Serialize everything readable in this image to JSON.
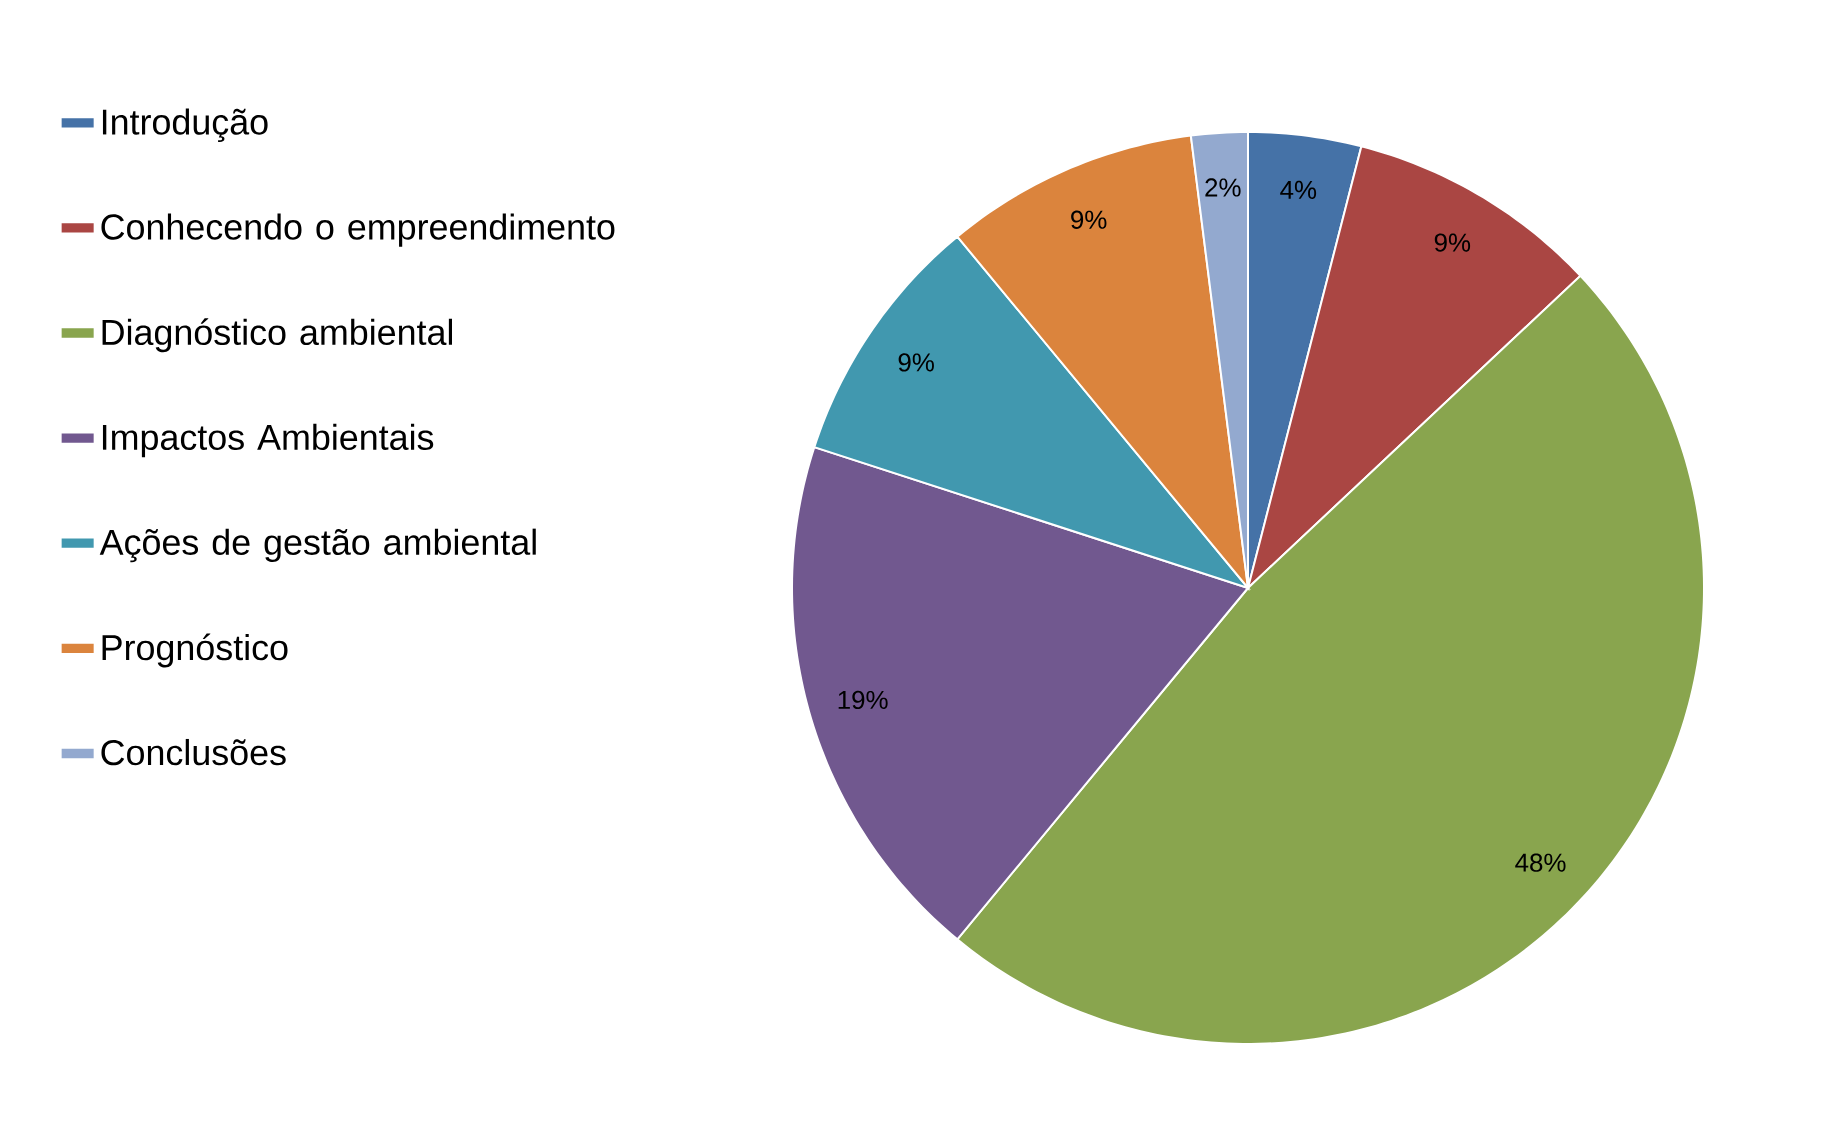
{
  "chart_data": {
    "type": "pie",
    "categories": [
      "Introdução",
      "Conhecendo o empreendimento",
      "Diagnóstico ambiental",
      "Impactos Ambientais",
      "Ações de gestão ambiental",
      "Prognóstico",
      "Conclusões"
    ],
    "values": [
      4,
      9,
      48,
      19,
      9,
      9,
      2
    ],
    "value_labels": [
      "4%",
      "9%",
      "48%",
      "19%",
      "9%",
      "9%",
      "2%"
    ],
    "colors": [
      "#4572a7",
      "#aa4643",
      "#89a54e",
      "#71588f",
      "#4198af",
      "#db843d",
      "#93a9cf"
    ],
    "legend": "left"
  }
}
